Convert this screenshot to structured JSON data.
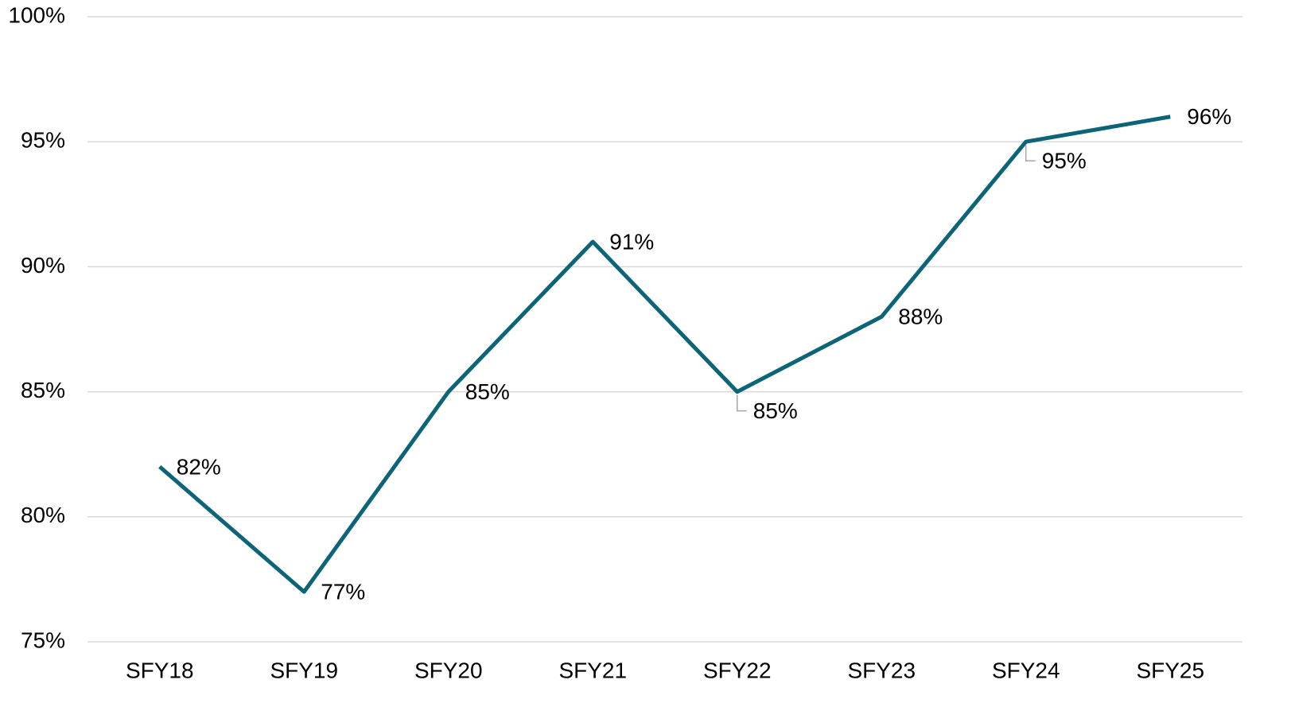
{
  "chart_data": {
    "type": "line",
    "categories": [
      "SFY18",
      "SFY19",
      "SFY20",
      "SFY21",
      "SFY22",
      "SFY23",
      "SFY24",
      "SFY25"
    ],
    "values": [
      82,
      77,
      85,
      91,
      85,
      88,
      95,
      96
    ],
    "value_labels": [
      "82%",
      "77%",
      "85%",
      "91%",
      "85%",
      "88%",
      "95%",
      "96%"
    ],
    "color": "#0b6477",
    "ylim": [
      75,
      100
    ],
    "yticks": [
      {
        "value": 75,
        "label": "75%"
      },
      {
        "value": 80,
        "label": "80%"
      },
      {
        "value": 85,
        "label": "85%"
      },
      {
        "value": 90,
        "label": "90%"
      },
      {
        "value": 95,
        "label": "95%"
      },
      {
        "value": 100,
        "label": "100%"
      }
    ],
    "grid": true
  }
}
